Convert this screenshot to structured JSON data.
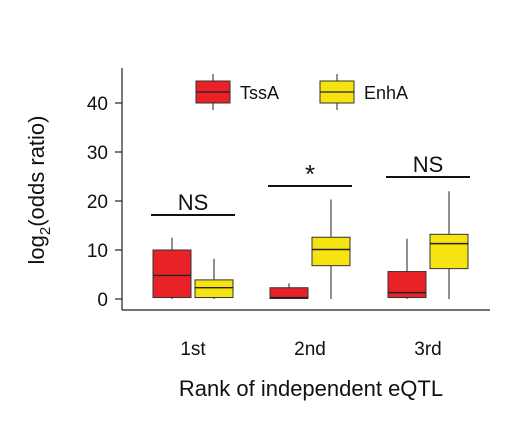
{
  "chart_data": {
    "type": "box",
    "categories": [
      "1st",
      "2nd",
      "3rd"
    ],
    "xlabel": "Rank of independent eQTL",
    "ylabel_prefix": "log",
    "ylabel_subscript": "2",
    "ylabel_suffix": "(odds ratio)",
    "ylim": [
      -2,
      47
    ],
    "yticks": [
      "0",
      "10",
      "20",
      "30",
      "40"
    ],
    "grid": false,
    "legend_placement": "top",
    "series": [
      {
        "name": "TssA",
        "color": "#e82227",
        "boxes": [
          {
            "whisker_low": 0,
            "q1": 0.3,
            "median": 4.8,
            "q3": 10.0,
            "whisker_high": 12.5
          },
          {
            "whisker_low": 0,
            "q1": 0.1,
            "median": 0.3,
            "q3": 2.3,
            "whisker_high": 3.2
          },
          {
            "whisker_low": 0,
            "q1": 0.3,
            "median": 1.3,
            "q3": 5.6,
            "whisker_high": 12.3
          }
        ]
      },
      {
        "name": "EnhA",
        "color": "#f5e312",
        "boxes": [
          {
            "whisker_low": 0,
            "q1": 0.3,
            "median": 2.3,
            "q3": 3.9,
            "whisker_high": 8.2
          },
          {
            "whisker_low": 0,
            "q1": 6.8,
            "median": 10.1,
            "q3": 12.6,
            "whisker_high": 20.3
          },
          {
            "whisker_low": 0,
            "q1": 6.2,
            "median": 11.3,
            "q3": 13.2,
            "whisker_high": 22.0
          }
        ]
      }
    ],
    "annotations": [
      "NS",
      "*",
      "NS"
    ]
  }
}
